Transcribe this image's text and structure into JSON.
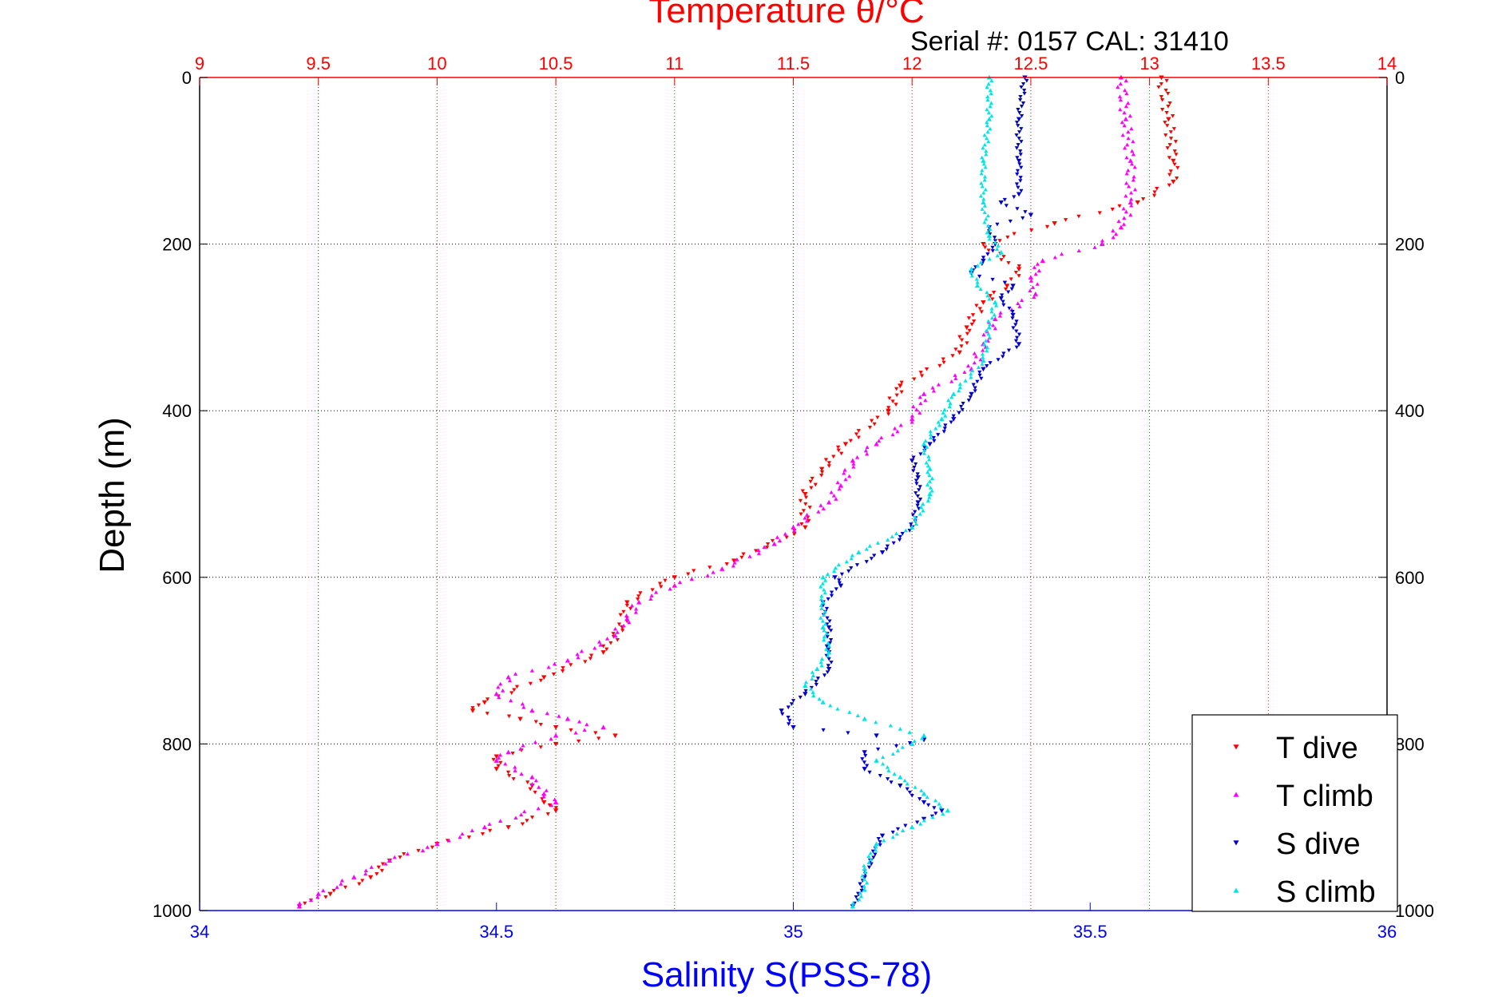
{
  "chart_data": {
    "type": "scatter",
    "title": "Temperature θ/°C",
    "subtitle": "Serial #: 0157  CAL: 31410",
    "ylabel": "Depth (m)",
    "xlabel_bottom": "Salinity S(PSS-78)",
    "xlabel_top": "Temperature θ/°C",
    "y_reversed": true,
    "ylim": [
      0,
      1000
    ],
    "xlim_salinity": [
      34,
      36
    ],
    "xlim_temperature": [
      9,
      14
    ],
    "grid": true,
    "legend_position": "bottom-right",
    "y_ticks": [
      "0",
      "200",
      "400",
      "600",
      "800",
      "1000"
    ],
    "bottom_ticks": [
      "34",
      "34.5",
      "35",
      "35.5",
      "36"
    ],
    "top_ticks": [
      "9",
      "9.5",
      "10",
      "10.5",
      "11",
      "11.5",
      "12",
      "12.5",
      "13",
      "13.5",
      "14"
    ],
    "colors": {
      "temperature_axis": "#ff0000",
      "salinity_axis": "#0000ff",
      "t_dive": "#ff0000",
      "t_climb": "#ff00ff",
      "s_dive": "#0000cc",
      "s_climb": "#00e5e5"
    },
    "series": [
      {
        "name": "T dive",
        "axis": "temperature",
        "marker": "triangle-down",
        "color": "#ff0000",
        "points": [
          [
            13.05,
            0
          ],
          [
            13.08,
            50
          ],
          [
            13.1,
            100
          ],
          [
            13.1,
            125
          ],
          [
            12.95,
            150
          ],
          [
            12.6,
            175
          ],
          [
            12.3,
            200
          ],
          [
            12.45,
            230
          ],
          [
            12.4,
            250
          ],
          [
            12.3,
            270
          ],
          [
            12.23,
            300
          ],
          [
            12.2,
            330
          ],
          [
            11.95,
            370
          ],
          [
            11.9,
            400
          ],
          [
            11.72,
            440
          ],
          [
            11.62,
            470
          ],
          [
            11.55,
            500
          ],
          [
            11.55,
            540
          ],
          [
            11.25,
            580
          ],
          [
            11.0,
            600
          ],
          [
            10.8,
            630
          ],
          [
            10.78,
            660
          ],
          [
            10.7,
            690
          ],
          [
            10.45,
            720
          ],
          [
            10.2,
            750
          ],
          [
            10.15,
            760
          ],
          [
            10.35,
            770
          ],
          [
            10.5,
            780
          ],
          [
            10.75,
            790
          ],
          [
            10.5,
            800
          ],
          [
            10.25,
            815
          ],
          [
            10.25,
            830
          ],
          [
            10.4,
            850
          ],
          [
            10.45,
            870
          ],
          [
            10.5,
            880
          ],
          [
            10.3,
            900
          ],
          [
            10.0,
            920
          ],
          [
            9.8,
            940
          ],
          [
            9.72,
            960
          ],
          [
            9.55,
            980
          ],
          [
            9.42,
            995
          ]
        ]
      },
      {
        "name": "T climb",
        "axis": "temperature",
        "marker": "triangle-up",
        "color": "#ff00ff",
        "points": [
          [
            12.88,
            0
          ],
          [
            12.9,
            50
          ],
          [
            12.92,
            100
          ],
          [
            12.92,
            150
          ],
          [
            12.88,
            180
          ],
          [
            12.8,
            200
          ],
          [
            12.55,
            220
          ],
          [
            12.5,
            240
          ],
          [
            12.52,
            260
          ],
          [
            12.35,
            290
          ],
          [
            12.3,
            320
          ],
          [
            12.25,
            350
          ],
          [
            12.05,
            380
          ],
          [
            12.0,
            410
          ],
          [
            11.85,
            440
          ],
          [
            11.75,
            460
          ],
          [
            11.7,
            490
          ],
          [
            11.65,
            510
          ],
          [
            11.5,
            540
          ],
          [
            11.42,
            560
          ],
          [
            11.2,
            590
          ],
          [
            11.0,
            610
          ],
          [
            10.85,
            630
          ],
          [
            10.8,
            650
          ],
          [
            10.75,
            670
          ],
          [
            10.55,
            700
          ],
          [
            10.3,
            720
          ],
          [
            10.25,
            740
          ],
          [
            10.4,
            760
          ],
          [
            10.55,
            770
          ],
          [
            10.7,
            780
          ],
          [
            10.5,
            790
          ],
          [
            10.3,
            810
          ],
          [
            10.25,
            820
          ],
          [
            10.4,
            840
          ],
          [
            10.45,
            860
          ],
          [
            10.5,
            870
          ],
          [
            10.2,
            900
          ],
          [
            10.0,
            920
          ],
          [
            9.8,
            940
          ],
          [
            9.65,
            960
          ],
          [
            9.5,
            980
          ],
          [
            9.42,
            995
          ]
        ]
      },
      {
        "name": "S dive",
        "axis": "salinity",
        "marker": "triangle-down",
        "color": "#0000cc",
        "points": [
          [
            35.39,
            0
          ],
          [
            35.38,
            50
          ],
          [
            35.38,
            100
          ],
          [
            35.38,
            140
          ],
          [
            35.35,
            150
          ],
          [
            35.4,
            165
          ],
          [
            35.33,
            180
          ],
          [
            35.34,
            200
          ],
          [
            35.32,
            220
          ],
          [
            35.3,
            235
          ],
          [
            35.37,
            250
          ],
          [
            35.35,
            265
          ],
          [
            35.37,
            285
          ],
          [
            35.38,
            320
          ],
          [
            35.32,
            350
          ],
          [
            35.3,
            380
          ],
          [
            35.27,
            410
          ],
          [
            35.23,
            440
          ],
          [
            35.2,
            460
          ],
          [
            35.21,
            480
          ],
          [
            35.21,
            510
          ],
          [
            35.2,
            540
          ],
          [
            35.15,
            570
          ],
          [
            35.07,
            600
          ],
          [
            35.08,
            610
          ],
          [
            35.05,
            630
          ],
          [
            35.06,
            660
          ],
          [
            35.06,
            690
          ],
          [
            35.06,
            710
          ],
          [
            35.02,
            740
          ],
          [
            34.98,
            760
          ],
          [
            35.0,
            780
          ],
          [
            35.14,
            790
          ],
          [
            35.22,
            795
          ],
          [
            35.12,
            810
          ],
          [
            35.12,
            830
          ],
          [
            35.18,
            850
          ],
          [
            35.22,
            870
          ],
          [
            35.25,
            880
          ],
          [
            35.22,
            890
          ],
          [
            35.15,
            910
          ],
          [
            35.13,
            940
          ],
          [
            35.12,
            960
          ],
          [
            35.11,
            980
          ],
          [
            35.1,
            995
          ]
        ]
      },
      {
        "name": "S climb",
        "axis": "salinity",
        "marker": "triangle-up",
        "color": "#00e5e5",
        "points": [
          [
            35.33,
            0
          ],
          [
            35.33,
            50
          ],
          [
            35.32,
            100
          ],
          [
            35.32,
            150
          ],
          [
            35.33,
            190
          ],
          [
            35.35,
            210
          ],
          [
            35.3,
            230
          ],
          [
            35.31,
            250
          ],
          [
            35.34,
            270
          ],
          [
            35.33,
            300
          ],
          [
            35.32,
            340
          ],
          [
            35.27,
            380
          ],
          [
            35.25,
            410
          ],
          [
            35.22,
            440
          ],
          [
            35.23,
            470
          ],
          [
            35.23,
            500
          ],
          [
            35.2,
            540
          ],
          [
            35.11,
            570
          ],
          [
            35.05,
            600
          ],
          [
            35.05,
            630
          ],
          [
            35.05,
            660
          ],
          [
            35.06,
            690
          ],
          [
            35.04,
            710
          ],
          [
            35.02,
            730
          ],
          [
            35.05,
            750
          ],
          [
            35.12,
            770
          ],
          [
            35.22,
            790
          ],
          [
            35.2,
            800
          ],
          [
            35.14,
            820
          ],
          [
            35.18,
            840
          ],
          [
            35.22,
            860
          ],
          [
            35.26,
            880
          ],
          [
            35.2,
            900
          ],
          [
            35.14,
            920
          ],
          [
            35.12,
            950
          ],
          [
            35.12,
            975
          ],
          [
            35.1,
            995
          ]
        ]
      }
    ]
  }
}
